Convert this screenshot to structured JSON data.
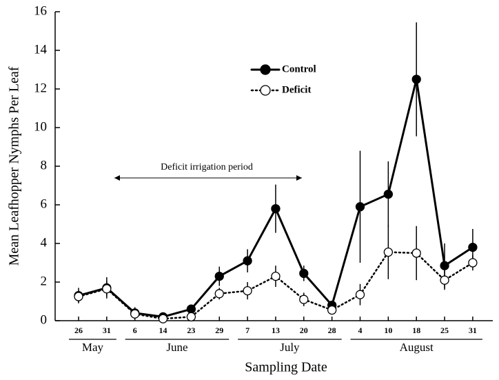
{
  "chart_data": {
    "type": "line",
    "y_label": "Mean Leafhopper Nymphs Per Leaf",
    "x_label": "Sampling Date",
    "annotation": "Deficit irrigation period",
    "categories": [
      "26",
      "31",
      "6",
      "14",
      "23",
      "29",
      "7",
      "13",
      "20",
      "28",
      "4",
      "10",
      "18",
      "25",
      "31"
    ],
    "months": [
      "May",
      "June",
      "July",
      "August"
    ],
    "series": [
      {
        "name": "Control",
        "color": "#000000",
        "marker": "filled",
        "values": [
          1.3,
          1.7,
          0.4,
          0.2,
          0.6,
          2.3,
          3.1,
          5.8,
          2.45,
          0.8,
          5.9,
          6.55,
          12.5,
          2.85,
          3.8
        ],
        "errors": [
          0.4,
          0.55,
          0.3,
          0.1,
          0.2,
          0.5,
          0.6,
          1.25,
          0.4,
          0.2,
          2.9,
          1.7,
          2.95,
          1.15,
          0.95
        ]
      },
      {
        "name": "Deficit",
        "color": "#000000",
        "marker": "open",
        "values": [
          1.25,
          1.65,
          0.35,
          0.1,
          0.2,
          1.4,
          1.55,
          2.3,
          1.1,
          0.55,
          1.35,
          3.55,
          3.5,
          2.1,
          3.0
        ],
        "errors": [
          0.3,
          0.4,
          0.2,
          0.1,
          0.1,
          0.3,
          0.45,
          0.55,
          0.35,
          0.2,
          0.55,
          1.4,
          1.4,
          0.5,
          0.4
        ]
      }
    ],
    "ylim": [
      0,
      16
    ],
    "yticks": [
      0,
      2,
      4,
      6,
      8,
      10,
      12,
      14,
      16
    ],
    "grid": false
  }
}
